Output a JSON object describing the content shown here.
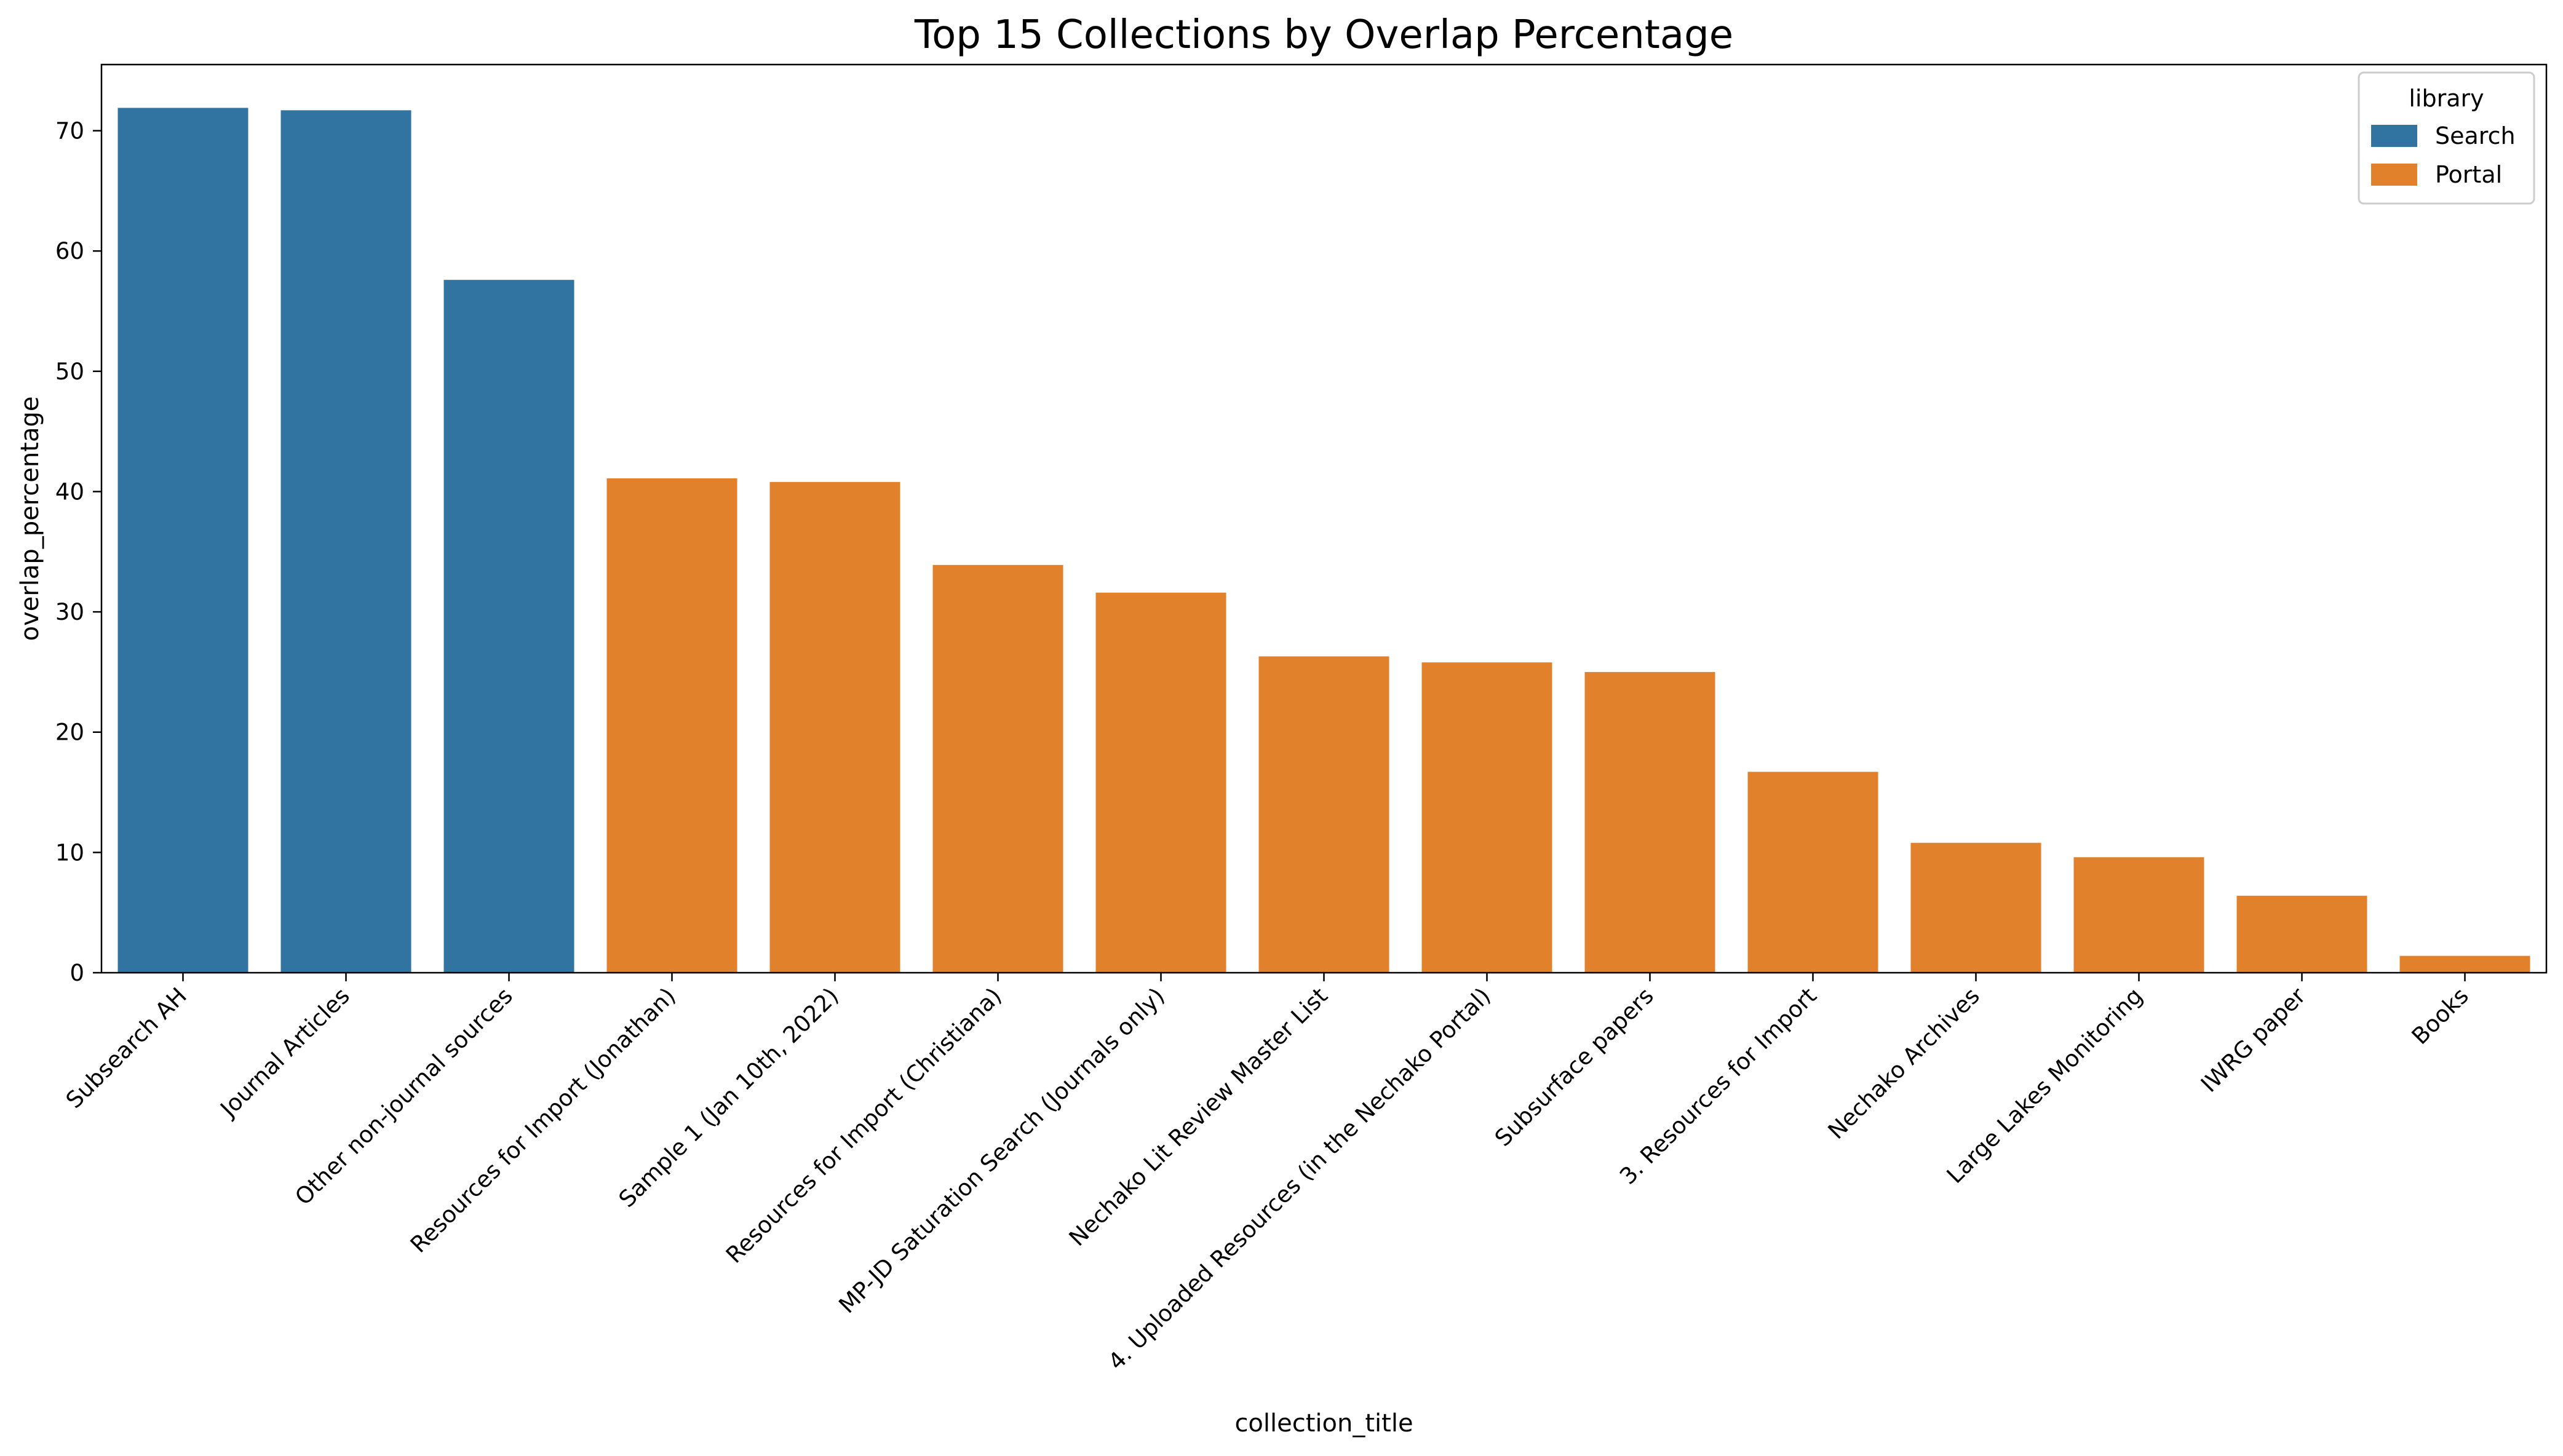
{
  "chart_data": {
    "type": "bar",
    "title": "Top 15 Collections by Overlap Percentage",
    "xlabel": "collection_title",
    "ylabel": "overlap_percentage",
    "ylim": [
      0,
      75.5
    ],
    "yticks": [
      0,
      10,
      20,
      30,
      40,
      50,
      60,
      70
    ],
    "grid": false,
    "legend": {
      "title": "library",
      "placement": "top-right",
      "entries": [
        {
          "name": "Search",
          "color": "#3274a1"
        },
        {
          "name": "Portal",
          "color": "#e1812c"
        }
      ]
    },
    "categories": [
      "Subsearch AH",
      "Journal Articles",
      "Other non-journal sources",
      "Resources for Import (Jonathan)",
      "Sample 1 (Jan 10th, 2022)",
      "Resources for Import (Christiana)",
      "MP-JD Saturation Search (Journals only)",
      "Nechako Lit Review Master List",
      "4. Uploaded Resources (in the Nechako Portal)",
      "Subsurface papers",
      "3. Resources for Import",
      "Nechako Archives",
      "Large Lakes Monitoring",
      "IWRG paper",
      "Books"
    ],
    "values": [
      71.9,
      71.7,
      57.6,
      41.1,
      40.8,
      33.9,
      31.6,
      26.3,
      25.8,
      25.0,
      16.7,
      10.8,
      9.6,
      6.4,
      1.4
    ],
    "library": [
      "Search",
      "Search",
      "Search",
      "Portal",
      "Portal",
      "Portal",
      "Portal",
      "Portal",
      "Portal",
      "Portal",
      "Portal",
      "Portal",
      "Portal",
      "Portal",
      "Portal"
    ]
  }
}
